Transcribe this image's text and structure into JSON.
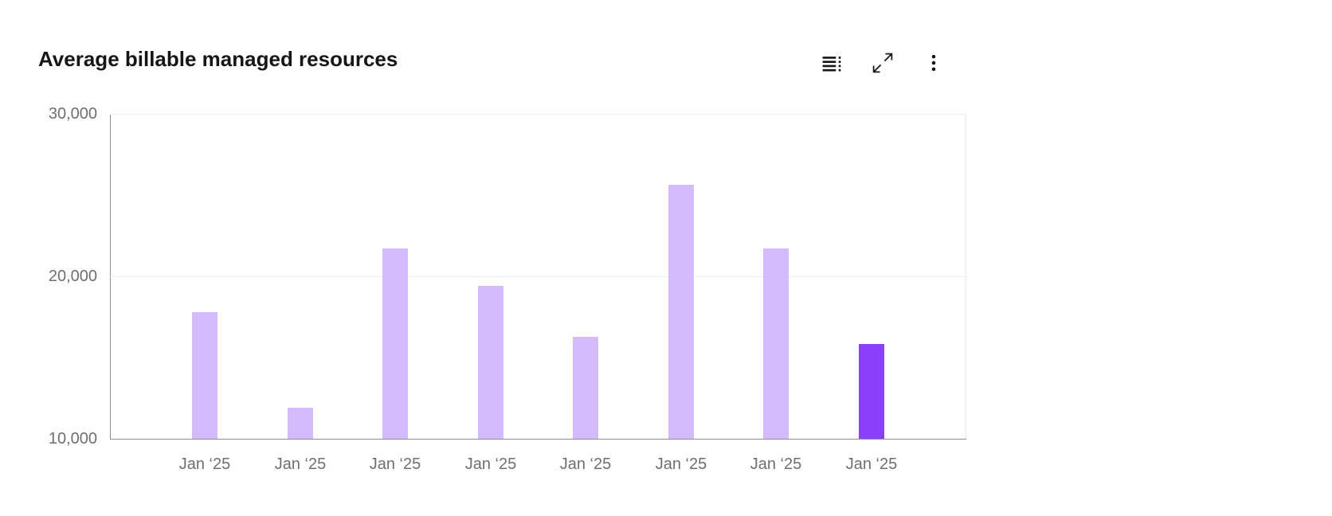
{
  "header": {
    "title": "Average billable managed resources",
    "toolbar": {
      "show_data_table_label": "Show as data table",
      "maximize_label": "Make fullscreen",
      "overflow_menu_label": "More options"
    }
  },
  "chart_data": {
    "type": "bar",
    "title": "Average billable managed resources",
    "categories": [
      "Jan ‘25",
      "Jan ‘25",
      "Jan ‘25",
      "Jan ‘25",
      "Jan ‘25",
      "Jan ‘25",
      "Jan ‘25",
      "Jan ‘25"
    ],
    "values": [
      17810,
      11930,
      21730,
      19400,
      16260,
      25640,
      21700,
      15850
    ],
    "highlighted_index": 7,
    "xlabel": "",
    "ylabel": "",
    "ylim": [
      10000,
      30000
    ],
    "yticks": [
      10000,
      20000,
      30000
    ],
    "ytick_labels": [
      "10,000",
      "20,000",
      "30,000"
    ],
    "grid": "horizontal",
    "legend": "none",
    "bar_color": "#d4bbff",
    "highlight_color": "#8a3ffc",
    "axis_color": "#8d8d8d",
    "tick_label_color": "#6f6f6f"
  }
}
